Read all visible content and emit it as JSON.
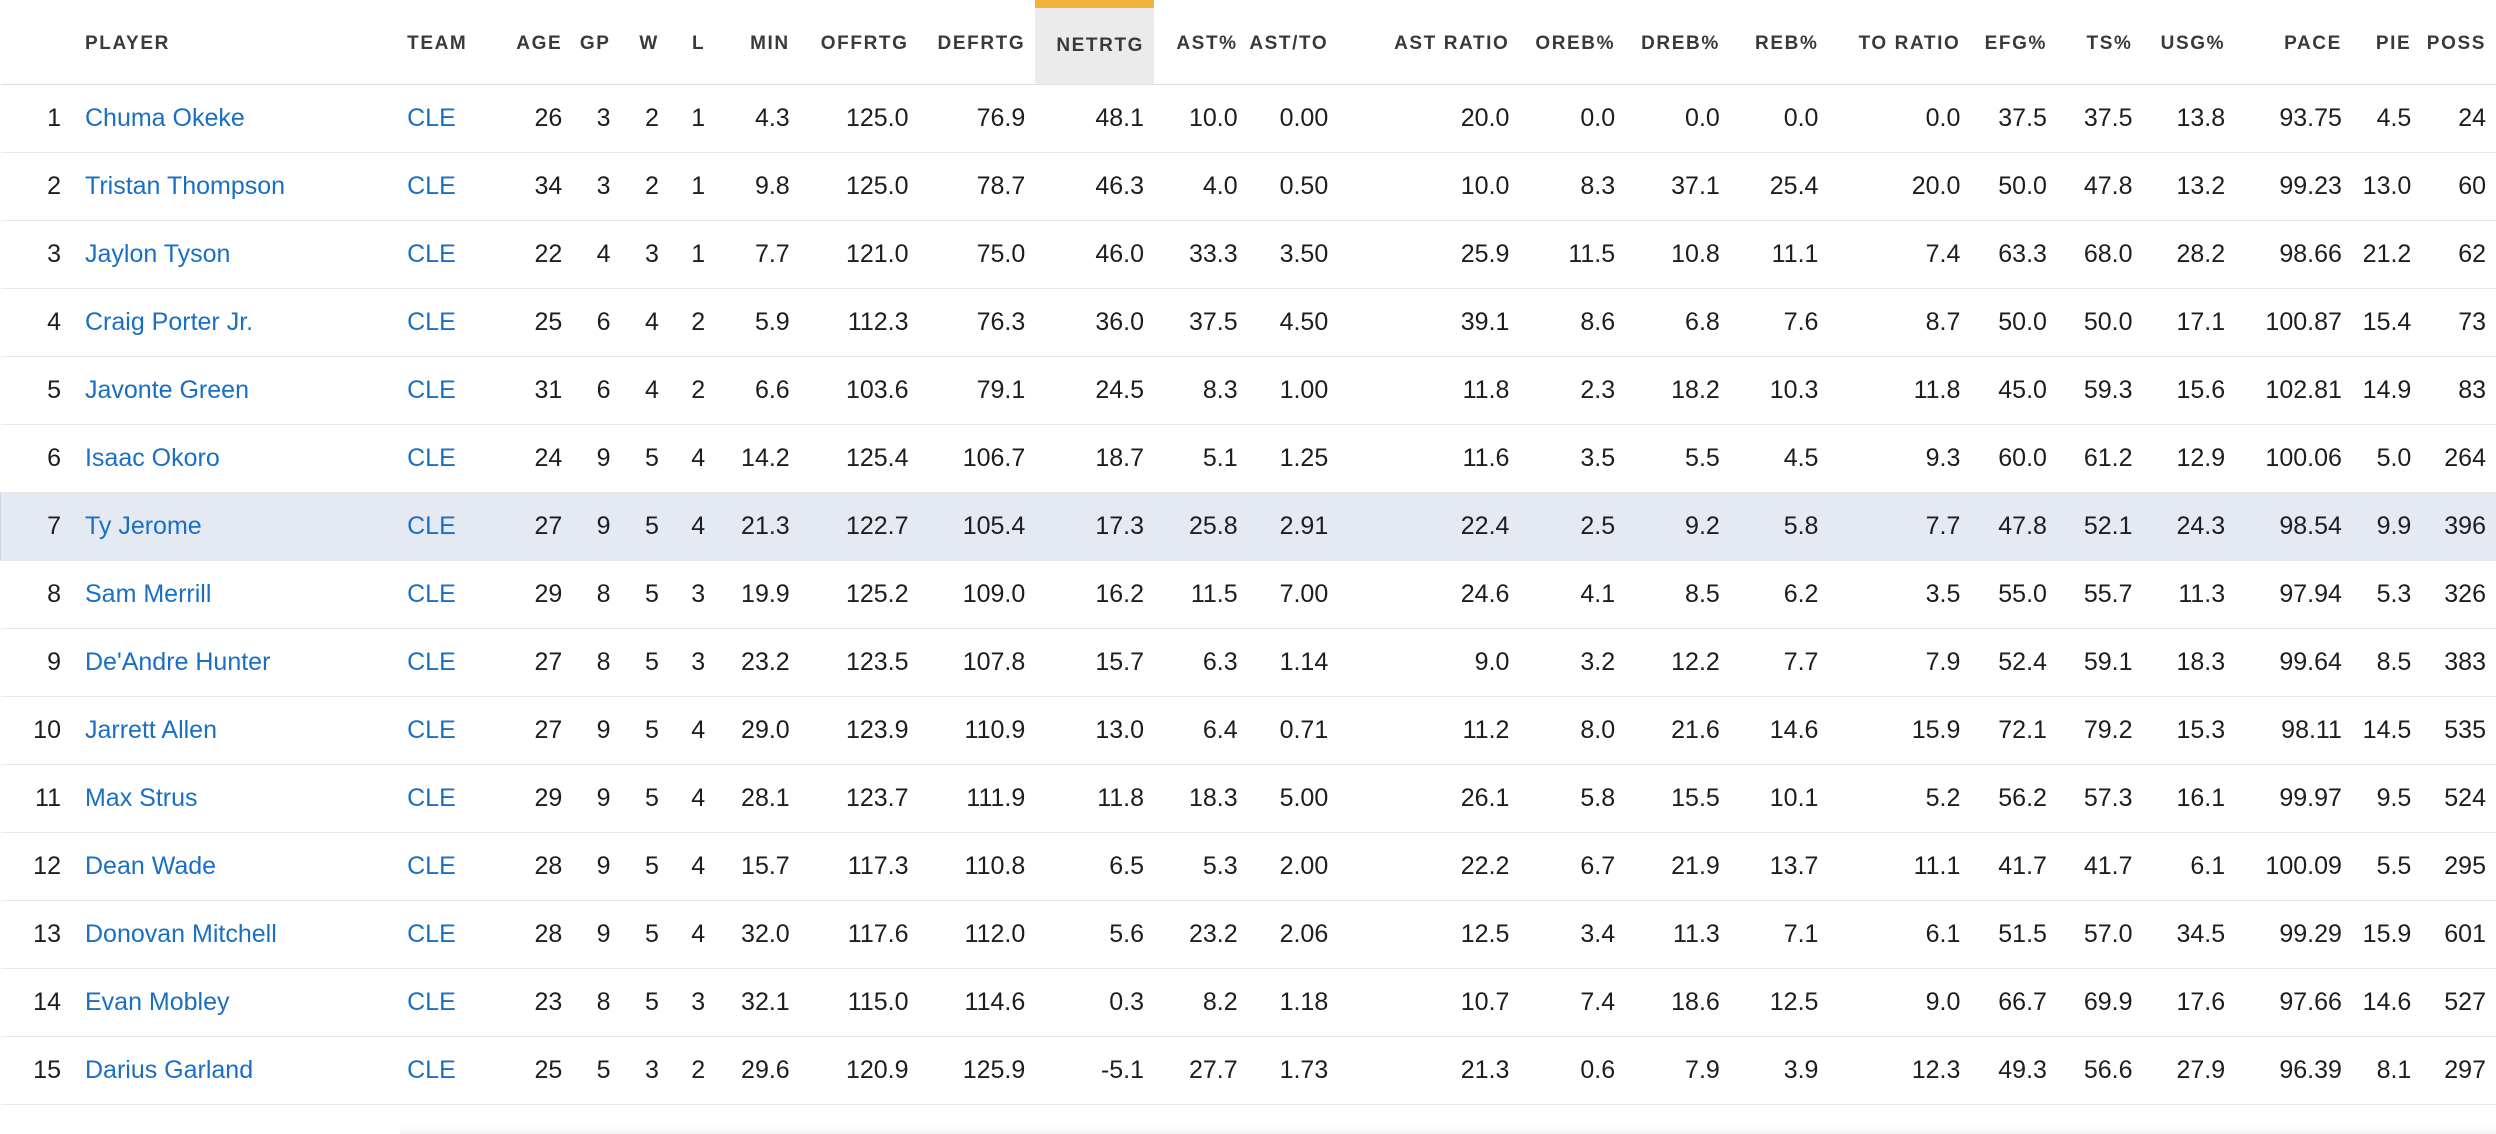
{
  "table": {
    "columns": [
      "PLAYER",
      "TEAM",
      "AGE",
      "GP",
      "W",
      "L",
      "MIN",
      "OFFRTG",
      "DEFRTG",
      "NETRTG",
      "AST%",
      "AST/TO",
      "AST RATIO",
      "OREB%",
      "DREB%",
      "REB%",
      "TO RATIO",
      "EFG%",
      "TS%",
      "USG%",
      "PACE",
      "PIE",
      "POSS"
    ],
    "sorted_column": "NETRTG",
    "highlighted_row": 7,
    "rows": [
      {
        "rank": "1",
        "player": "Chuma Okeke",
        "team": "CLE",
        "stats": [
          "26",
          "3",
          "2",
          "1",
          "4.3",
          "125.0",
          "76.9",
          "48.1",
          "10.0",
          "0.00",
          "20.0",
          "0.0",
          "0.0",
          "0.0",
          "0.0",
          "37.5",
          "37.5",
          "13.8",
          "93.75",
          "4.5",
          "24"
        ]
      },
      {
        "rank": "2",
        "player": "Tristan Thompson",
        "team": "CLE",
        "stats": [
          "34",
          "3",
          "2",
          "1",
          "9.8",
          "125.0",
          "78.7",
          "46.3",
          "4.0",
          "0.50",
          "10.0",
          "8.3",
          "37.1",
          "25.4",
          "20.0",
          "50.0",
          "47.8",
          "13.2",
          "99.23",
          "13.0",
          "60"
        ]
      },
      {
        "rank": "3",
        "player": "Jaylon Tyson",
        "team": "CLE",
        "stats": [
          "22",
          "4",
          "3",
          "1",
          "7.7",
          "121.0",
          "75.0",
          "46.0",
          "33.3",
          "3.50",
          "25.9",
          "11.5",
          "10.8",
          "11.1",
          "7.4",
          "63.3",
          "68.0",
          "28.2",
          "98.66",
          "21.2",
          "62"
        ]
      },
      {
        "rank": "4",
        "player": "Craig Porter Jr.",
        "team": "CLE",
        "stats": [
          "25",
          "6",
          "4",
          "2",
          "5.9",
          "112.3",
          "76.3",
          "36.0",
          "37.5",
          "4.50",
          "39.1",
          "8.6",
          "6.8",
          "7.6",
          "8.7",
          "50.0",
          "50.0",
          "17.1",
          "100.87",
          "15.4",
          "73"
        ]
      },
      {
        "rank": "5",
        "player": "Javonte Green",
        "team": "CLE",
        "stats": [
          "31",
          "6",
          "4",
          "2",
          "6.6",
          "103.6",
          "79.1",
          "24.5",
          "8.3",
          "1.00",
          "11.8",
          "2.3",
          "18.2",
          "10.3",
          "11.8",
          "45.0",
          "59.3",
          "15.6",
          "102.81",
          "14.9",
          "83"
        ]
      },
      {
        "rank": "6",
        "player": "Isaac Okoro",
        "team": "CLE",
        "stats": [
          "24",
          "9",
          "5",
          "4",
          "14.2",
          "125.4",
          "106.7",
          "18.7",
          "5.1",
          "1.25",
          "11.6",
          "3.5",
          "5.5",
          "4.5",
          "9.3",
          "60.0",
          "61.2",
          "12.9",
          "100.06",
          "5.0",
          "264"
        ]
      },
      {
        "rank": "7",
        "player": "Ty Jerome",
        "team": "CLE",
        "stats": [
          "27",
          "9",
          "5",
          "4",
          "21.3",
          "122.7",
          "105.4",
          "17.3",
          "25.8",
          "2.91",
          "22.4",
          "2.5",
          "9.2",
          "5.8",
          "7.7",
          "47.8",
          "52.1",
          "24.3",
          "98.54",
          "9.9",
          "396"
        ]
      },
      {
        "rank": "8",
        "player": "Sam Merrill",
        "team": "CLE",
        "stats": [
          "29",
          "8",
          "5",
          "3",
          "19.9",
          "125.2",
          "109.0",
          "16.2",
          "11.5",
          "7.00",
          "24.6",
          "4.1",
          "8.5",
          "6.2",
          "3.5",
          "55.0",
          "55.7",
          "11.3",
          "97.94",
          "5.3",
          "326"
        ]
      },
      {
        "rank": "9",
        "player": "De'Andre Hunter",
        "team": "CLE",
        "stats": [
          "27",
          "8",
          "5",
          "3",
          "23.2",
          "123.5",
          "107.8",
          "15.7",
          "6.3",
          "1.14",
          "9.0",
          "3.2",
          "12.2",
          "7.7",
          "7.9",
          "52.4",
          "59.1",
          "18.3",
          "99.64",
          "8.5",
          "383"
        ]
      },
      {
        "rank": "10",
        "player": "Jarrett Allen",
        "team": "CLE",
        "stats": [
          "27",
          "9",
          "5",
          "4",
          "29.0",
          "123.9",
          "110.9",
          "13.0",
          "6.4",
          "0.71",
          "11.2",
          "8.0",
          "21.6",
          "14.6",
          "15.9",
          "72.1",
          "79.2",
          "15.3",
          "98.11",
          "14.5",
          "535"
        ]
      },
      {
        "rank": "11",
        "player": "Max Strus",
        "team": "CLE",
        "stats": [
          "29",
          "9",
          "5",
          "4",
          "28.1",
          "123.7",
          "111.9",
          "11.8",
          "18.3",
          "5.00",
          "26.1",
          "5.8",
          "15.5",
          "10.1",
          "5.2",
          "56.2",
          "57.3",
          "16.1",
          "99.97",
          "9.5",
          "524"
        ]
      },
      {
        "rank": "12",
        "player": "Dean Wade",
        "team": "CLE",
        "stats": [
          "28",
          "9",
          "5",
          "4",
          "15.7",
          "117.3",
          "110.8",
          "6.5",
          "5.3",
          "2.00",
          "22.2",
          "6.7",
          "21.9",
          "13.7",
          "11.1",
          "41.7",
          "41.7",
          "6.1",
          "100.09",
          "5.5",
          "295"
        ]
      },
      {
        "rank": "13",
        "player": "Donovan Mitchell",
        "team": "CLE",
        "stats": [
          "28",
          "9",
          "5",
          "4",
          "32.0",
          "117.6",
          "112.0",
          "5.6",
          "23.2",
          "2.06",
          "12.5",
          "3.4",
          "11.3",
          "7.1",
          "6.1",
          "51.5",
          "57.0",
          "34.5",
          "99.29",
          "15.9",
          "601"
        ]
      },
      {
        "rank": "14",
        "player": "Evan Mobley",
        "team": "CLE",
        "stats": [
          "23",
          "8",
          "5",
          "3",
          "32.1",
          "115.0",
          "114.6",
          "0.3",
          "8.2",
          "1.18",
          "10.7",
          "7.4",
          "18.6",
          "12.5",
          "9.0",
          "66.7",
          "69.9",
          "17.6",
          "97.66",
          "14.6",
          "527"
        ]
      },
      {
        "rank": "15",
        "player": "Darius Garland",
        "team": "CLE",
        "stats": [
          "25",
          "5",
          "3",
          "2",
          "29.6",
          "120.9",
          "125.9",
          "-5.1",
          "27.7",
          "1.73",
          "21.3",
          "0.6",
          "7.9",
          "3.9",
          "12.3",
          "49.3",
          "56.6",
          "27.9",
          "96.39",
          "8.1",
          "297"
        ]
      }
    ]
  }
}
